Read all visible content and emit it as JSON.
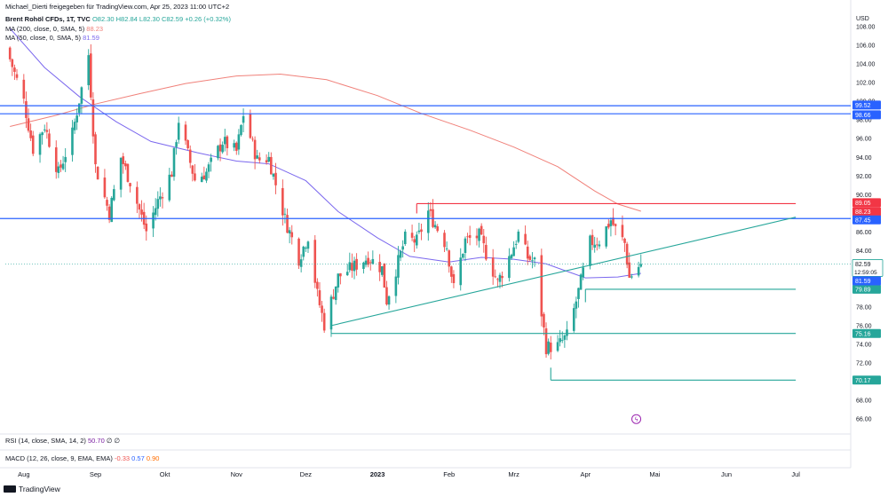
{
  "header": {
    "publisher": "Michael_Dierti freigegeben für TradingView.com, Apr 25, 2023 11:00 UTC+2"
  },
  "legend": {
    "symbol": "Brent Rohöl CFDs, 1T, TVC",
    "open": "O82.30",
    "high": "H82.84",
    "low": "L82.30",
    "close": "C82.59",
    "change": "+0.26 (+0.32%)",
    "ma200_label": "MA (200, close, 0, SMA, 5)",
    "ma200_value": "88.23",
    "ma50_label": "MA (50, close, 0, SMA, 5)",
    "ma50_value": "81.59"
  },
  "rsi": {
    "label": "RSI (14, close, SMA, 14, 2)",
    "value": "50.70",
    "v2": "∅",
    "v3": "∅"
  },
  "macd": {
    "label": "MACD (12, 26, close, 9, EMA, EMA)",
    "v1": "-0.33",
    "v2": "0.57",
    "v3": "0.90"
  },
  "footer": {
    "brand": "TradingView"
  },
  "colors": {
    "up": "#26a69a",
    "down": "#ef5350",
    "ma200": "#f0817a",
    "ma50": "#7b68ee",
    "hline": "#2962ff",
    "trend": "#26a69a",
    "resist": "#f23645",
    "lightning": "#9c27b0"
  },
  "chart_data": {
    "type": "candlestick",
    "currency": "USD",
    "ylim": [
      64.5,
      109.5
    ],
    "y_ticks": [
      66,
      68,
      70,
      72,
      74,
      76,
      78,
      80,
      82,
      84,
      86,
      88,
      90,
      92,
      94,
      96,
      98,
      100,
      102,
      104,
      106,
      108
    ],
    "x_labels": [
      {
        "label": "Aug",
        "date": "2022-08-01"
      },
      {
        "label": "Sep",
        "date": "2022-09-01"
      },
      {
        "label": "Okt",
        "date": "2022-10-01"
      },
      {
        "label": "Nov",
        "date": "2022-11-01"
      },
      {
        "label": "Dez",
        "date": "2022-12-01"
      },
      {
        "label": "2023",
        "date": "2023-01-01"
      },
      {
        "label": "Feb",
        "date": "2023-02-01"
      },
      {
        "label": "Mrz",
        "date": "2023-03-01"
      },
      {
        "label": "Apr",
        "date": "2023-04-01"
      },
      {
        "label": "Mai",
        "date": "2023-05-01"
      },
      {
        "label": "Jun",
        "date": "2023-06-01"
      },
      {
        "label": "Jul",
        "date": "2023-07-01"
      }
    ],
    "close_path": [
      [
        "2022-07-26",
        104.5
      ],
      [
        "2022-08-01",
        100.0
      ],
      [
        "2022-08-05",
        94.9
      ],
      [
        "2022-08-10",
        97.4
      ],
      [
        "2022-08-16",
        92.3
      ],
      [
        "2022-08-22",
        96.5
      ],
      [
        "2022-08-29",
        105.0
      ],
      [
        "2022-09-01",
        93.0
      ],
      [
        "2022-09-07",
        88.0
      ],
      [
        "2022-09-12",
        94.0
      ],
      [
        "2022-09-16",
        91.4
      ],
      [
        "2022-09-23",
        86.1
      ],
      [
        "2022-09-28",
        89.3
      ],
      [
        "2022-10-04",
        92.4
      ],
      [
        "2022-10-07",
        98.0
      ],
      [
        "2022-10-14",
        91.6
      ],
      [
        "2022-10-19",
        92.4
      ],
      [
        "2022-10-26",
        95.7
      ],
      [
        "2022-11-01",
        94.6
      ],
      [
        "2022-11-04",
        98.6
      ],
      [
        "2022-11-10",
        93.7
      ],
      [
        "2022-11-15",
        93.9
      ],
      [
        "2022-11-22",
        87.4
      ],
      [
        "2022-11-28",
        83.2
      ],
      [
        "2022-12-02",
        85.6
      ],
      [
        "2022-12-06",
        79.3
      ],
      [
        "2022-12-09",
        76.1
      ],
      [
        "2022-12-15",
        81.2
      ],
      [
        "2022-12-21",
        82.2
      ],
      [
        "2022-12-28",
        83.3
      ],
      [
        "2023-01-03",
        82.1
      ],
      [
        "2023-01-05",
        78.7
      ],
      [
        "2023-01-13",
        85.3
      ],
      [
        "2023-01-18",
        85.0
      ],
      [
        "2023-01-23",
        88.2
      ],
      [
        "2023-01-31",
        84.5
      ],
      [
        "2023-02-03",
        80.0
      ],
      [
        "2023-02-08",
        85.1
      ],
      [
        "2023-02-14",
        85.6
      ],
      [
        "2023-02-22",
        80.6
      ],
      [
        "2023-02-28",
        83.9
      ],
      [
        "2023-03-03",
        85.8
      ],
      [
        "2023-03-07",
        83.3
      ],
      [
        "2023-03-10",
        82.8
      ],
      [
        "2023-03-15",
        73.7
      ],
      [
        "2023-03-20",
        73.8
      ],
      [
        "2023-03-24",
        74.9
      ],
      [
        "2023-03-28",
        78.6
      ],
      [
        "2023-04-03",
        84.9
      ],
      [
        "2023-04-07",
        85.1
      ],
      [
        "2023-04-12",
        87.3
      ],
      [
        "2023-04-14",
        86.3
      ],
      [
        "2023-04-18",
        84.8
      ],
      [
        "2023-04-20",
        81.1
      ],
      [
        "2023-04-24",
        82.3
      ],
      [
        "2023-04-25",
        82.59
      ]
    ],
    "series": [
      {
        "name": "MA (200, close, 0, SMA, 5)",
        "values": [
          [
            "2022-07-26",
            97.3
          ],
          [
            "2022-08-15",
            98.5
          ],
          [
            "2022-09-01",
            99.7
          ],
          [
            "2022-09-20",
            100.8
          ],
          [
            "2022-10-10",
            101.9
          ],
          [
            "2022-11-01",
            102.7
          ],
          [
            "2022-11-20",
            102.9
          ],
          [
            "2022-12-10",
            102.3
          ],
          [
            "2023-01-01",
            100.6
          ],
          [
            "2023-01-20",
            98.7
          ],
          [
            "2023-02-10",
            96.9
          ],
          [
            "2023-03-01",
            95.1
          ],
          [
            "2023-03-20",
            93.0
          ],
          [
            "2023-04-05",
            90.4
          ],
          [
            "2023-04-15",
            89.0
          ],
          [
            "2023-04-25",
            88.23
          ]
        ]
      },
      {
        "name": "MA (50, close, 0, SMA, 5)",
        "values": [
          [
            "2022-07-26",
            107.8
          ],
          [
            "2022-08-10",
            103.6
          ],
          [
            "2022-08-25",
            100.5
          ],
          [
            "2022-09-10",
            97.8
          ],
          [
            "2022-09-25",
            95.7
          ],
          [
            "2022-10-15",
            94.5
          ],
          [
            "2022-11-01",
            93.6
          ],
          [
            "2022-11-15",
            93.3
          ],
          [
            "2022-12-01",
            91.5
          ],
          [
            "2022-12-15",
            88.2
          ],
          [
            "2023-01-01",
            85.4
          ],
          [
            "2023-01-15",
            83.4
          ],
          [
            "2023-02-01",
            82.8
          ],
          [
            "2023-02-15",
            83.3
          ],
          [
            "2023-03-01",
            83.1
          ],
          [
            "2023-03-15",
            82.6
          ],
          [
            "2023-04-01",
            81.1
          ],
          [
            "2023-04-15",
            81.2
          ],
          [
            "2023-04-25",
            81.59
          ]
        ]
      }
    ],
    "horizontal_lines": [
      {
        "value": 99.52,
        "label": "99.52",
        "color": "#2962ff"
      },
      {
        "value": 98.66,
        "label": "98.66",
        "color": "#2962ff"
      },
      {
        "value": 87.45,
        "label": "87.45",
        "color": "#2962ff"
      }
    ],
    "segments": [
      {
        "label": "89.05",
        "color": "#f23645",
        "from": [
          "2023-01-18",
          89.05
        ],
        "to": [
          "2023-07-01",
          89.05
        ]
      },
      {
        "label": "79.89",
        "color": "#26a69a",
        "from": [
          "2023-04-01",
          79.89
        ],
        "to": [
          "2023-07-01",
          79.89
        ]
      },
      {
        "label": "75.16",
        "color": "#26a69a",
        "from": [
          "2022-12-12",
          75.16
        ],
        "to": [
          "2023-07-01",
          75.16
        ]
      },
      {
        "label": "70.17",
        "color": "#26a69a",
        "from": [
          "2023-03-17",
          70.17
        ],
        "to": [
          "2023-07-01",
          70.17
        ]
      },
      {
        "label": "",
        "color": "#26a69a",
        "from": [
          "2022-12-12",
          76.0
        ],
        "to": [
          "2023-07-01",
          87.6
        ]
      },
      {
        "label": "",
        "color": "#26a69a",
        "from": [
          "2022-12-12",
          75.16
        ],
        "to": [
          "2022-12-12",
          76.2
        ]
      },
      {
        "label": "",
        "color": "#26a69a",
        "from": [
          "2023-03-17",
          70.17
        ],
        "to": [
          "2023-03-17",
          71.5
        ]
      },
      {
        "label": "",
        "color": "#26a69a",
        "from": [
          "2023-04-01",
          79.89
        ],
        "to": [
          "2023-04-01",
          78.5
        ]
      },
      {
        "label": "",
        "color": "#f23645",
        "from": [
          "2023-01-18",
          89.05
        ],
        "to": [
          "2023-01-18",
          88.0
        ]
      }
    ],
    "price_labels": [
      {
        "value": 89.05,
        "label": "89.05",
        "bg": "#f23645",
        "fg": "#ffffff"
      },
      {
        "value": 88.23,
        "label": "88.23",
        "bg": "#f23645",
        "fg": "#ffffff"
      },
      {
        "value": 87.45,
        "label": "87.45",
        "bg": "#2962ff",
        "fg": "#ffffff"
      },
      {
        "value": 82.59,
        "label": "82.59",
        "bg": "#26a69a",
        "fg": "#ffffff"
      },
      {
        "value": 81.59,
        "label": "81.59",
        "bg": "#2962ff",
        "fg": "#ffffff"
      }
    ],
    "countdown": "12:59:05",
    "grid": false
  }
}
